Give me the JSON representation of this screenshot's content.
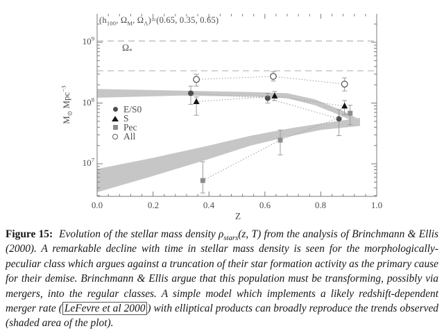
{
  "chart_data": {
    "type": "scatter",
    "title": "",
    "xlabel": "Z",
    "ylabel": {
      "m": "M",
      "sub": "⊙",
      "unit": " Mpc",
      "sup": "−3"
    },
    "xlim": [
      0.0,
      1.0
    ],
    "ylim": [
      3000000.0,
      3000000000.0
    ],
    "yscale": "log",
    "grid": false,
    "legend_position": "middle-left",
    "x_ticks": [
      "0.0",
      "0.2",
      "0.4",
      "0.6",
      "0.8",
      "1.0"
    ],
    "y_ticks": [
      {
        "base": "10",
        "exp": "9",
        "value": 1000000000.0
      },
      {
        "base": "10",
        "exp": "8",
        "value": 100000000.0
      },
      {
        "base": "10",
        "exp": "7",
        "value": 10000000.0
      }
    ],
    "annotation": {
      "p1": "(h",
      "s1": "100",
      "p2": ", Ω",
      "s2": "M",
      "p3": ", Ω",
      "s3": "Λ",
      "p4": ")=(0.65, 0.35, 0.65)"
    },
    "hlines": [
      {
        "value": 1050000000.0,
        "label": {
          "base": "Ω",
          "sub": "*"
        }
      },
      {
        "value": 340000000.0
      }
    ],
    "series": [
      {
        "key": "e-s0",
        "name": "E/S0",
        "marker": "circle-filled",
        "color": "#4d4d4d",
        "points": [
          {
            "z": 0.335,
            "v": 145000000.0,
            "lo": 95000000.0,
            "hi": 190000000.0
          },
          {
            "z": 0.61,
            "v": 120000000.0,
            "lo": 100000000.0,
            "hi": 145000000.0
          },
          {
            "z": 0.865,
            "v": 55000000.0,
            "lo": 29000000.0,
            "hi": 78000000.0
          }
        ]
      },
      {
        "key": "s",
        "name": "S",
        "marker": "triangle-filled",
        "color": "#161616",
        "points": [
          {
            "z": 0.355,
            "v": 105000000.0,
            "lo": 63000000.0,
            "hi": 126000000.0
          },
          {
            "z": 0.635,
            "v": 130000000.0,
            "lo": 110000000.0,
            "hi": 155000000.0
          },
          {
            "z": 0.885,
            "v": 89000000.0,
            "lo": 65000000.0,
            "hi": 110000000.0
          }
        ]
      },
      {
        "key": "pec",
        "name": "Pec",
        "marker": "square-filled",
        "color": "#8c8c8c",
        "points": [
          {
            "z": 0.378,
            "v": 5300000.0,
            "lo": 3300000.0,
            "hi": 10800000.0
          },
          {
            "z": 0.655,
            "v": 24500000.0,
            "lo": 14000000.0,
            "hi": 36000000.0
          },
          {
            "z": 0.905,
            "v": 68000000.0,
            "lo": 44000000.0,
            "hi": 92000000.0
          }
        ]
      },
      {
        "key": "all",
        "name": "All",
        "marker": "circle-open",
        "color": "#5a5a5a",
        "points": [
          {
            "z": 0.355,
            "v": 245000000.0,
            "lo": 190000000.0,
            "hi": 298000000.0
          },
          {
            "z": 0.63,
            "v": 275000000.0,
            "lo": 230000000.0,
            "hi": 330000000.0
          },
          {
            "z": 0.885,
            "v": 205000000.0,
            "lo": 158000000.0,
            "hi": 260000000.0
          }
        ]
      }
    ],
    "bands": [
      {
        "name": "regular-classes",
        "polygon": [
          [
            0,
            170000000.0
          ],
          [
            0.3,
            160000000.0
          ],
          [
            0.55,
            152000000.0
          ],
          [
            0.68,
            145000000.0
          ],
          [
            0.78,
            115000000.0
          ],
          [
            0.88,
            74000000.0
          ],
          [
            0.94,
            53000000.0
          ],
          [
            0.94,
            44000000.0
          ],
          [
            0.88,
            60000000.0
          ],
          [
            0.78,
            92000000.0
          ],
          [
            0.68,
            120000000.0
          ],
          [
            0.55,
            128000000.0
          ],
          [
            0.3,
            133000000.0
          ],
          [
            0,
            122000000.0
          ]
        ]
      },
      {
        "name": "peculiar-merger-model",
        "polygon": [
          [
            0,
            8200000.0
          ],
          [
            0.2,
            12500000.0
          ],
          [
            0.4,
            20000000.0
          ],
          [
            0.55,
            29000000.0
          ],
          [
            0.7,
            39000000.0
          ],
          [
            0.8,
            46000000.0
          ],
          [
            0.94,
            57000000.0
          ],
          [
            0.94,
            42000000.0
          ],
          [
            0.8,
            36000000.0
          ],
          [
            0.7,
            29000000.0
          ],
          [
            0.55,
            20000000.0
          ],
          [
            0.4,
            12000000.0
          ],
          [
            0.2,
            6300000.0
          ],
          [
            0,
            3400000.0
          ]
        ]
      }
    ],
    "colors": {
      "axis": "#7a7a7a",
      "dashed": "#ababab",
      "dotted": "#9a9a9a",
      "error": "#9a9a9a",
      "band": "#c6c6c6",
      "tick_label": "#555555"
    }
  },
  "caption": {
    "label": "Figure 15:",
    "body_1": "Evolution of the stellar mass density ρ",
    "rho_sub": "stars",
    "body_2": "(z, T) from the analysis of Brinchmann & Ellis (2000). A remarkable decline with time in stellar mass density is seen for the morphologically-peculiar class which argues against a truncation of their star formation activity as the primary cause for their demise. Brinchmann & Ellis argue that this population must be transforming, possibly via mergers, into the regular classes. A simple model which implements a likely redshift-dependent merger rate (",
    "citation": "LeFevre et al 2000",
    "body_3": ") with elliptical products can broadly reproduce the trends observed (shaded area of the plot)."
  }
}
